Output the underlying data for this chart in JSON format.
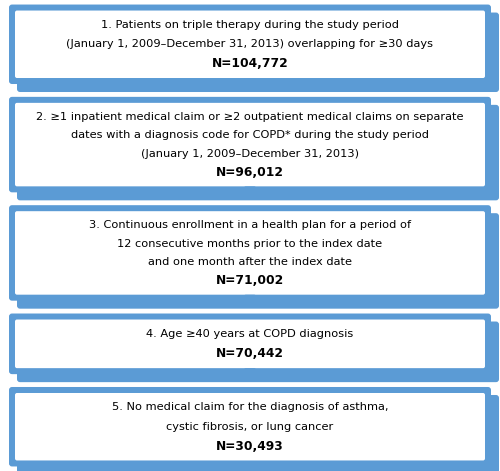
{
  "boxes": [
    {
      "id": 1,
      "lines": [
        "1. Patients on triple therapy during the study period",
        "(January 1, 2009–December 31, 2013) overlapping for ≥30 days",
        "N=104,772"
      ],
      "bold_line": 2
    },
    {
      "id": 2,
      "lines": [
        "2. ≥1 inpatient medical claim or ≥2 outpatient medical claims on separate",
        "dates with a diagnosis code for COPD* during the study period",
        "(January 1, 2009–December 31, 2013)",
        "N=96,012"
      ],
      "bold_line": 3
    },
    {
      "id": 3,
      "lines": [
        "3. Continuous enrollment in a health plan for a period of",
        "12 consecutive months prior to the index date",
        "and one month after the index date",
        "N=71,002"
      ],
      "bold_line": 3
    },
    {
      "id": 4,
      "lines": [
        "4. Age ≥40 years at COPD diagnosis",
        "N=70,442"
      ],
      "bold_line": 1
    },
    {
      "id": 5,
      "lines": [
        "5. No medical claim for the diagnosis of asthma,",
        "cystic fibrosis, or lung cancer",
        "N=30,493"
      ],
      "bold_line": 2
    }
  ],
  "box_fill_color": "#ffffff",
  "box_edge_color": "#5b9bd5",
  "shadow_color": "#5b9bd5",
  "arrow_color": "#5b9bd5",
  "text_color": "#000000",
  "bg_color": "#ffffff",
  "font_size": 8.2,
  "bold_font_size": 8.8
}
